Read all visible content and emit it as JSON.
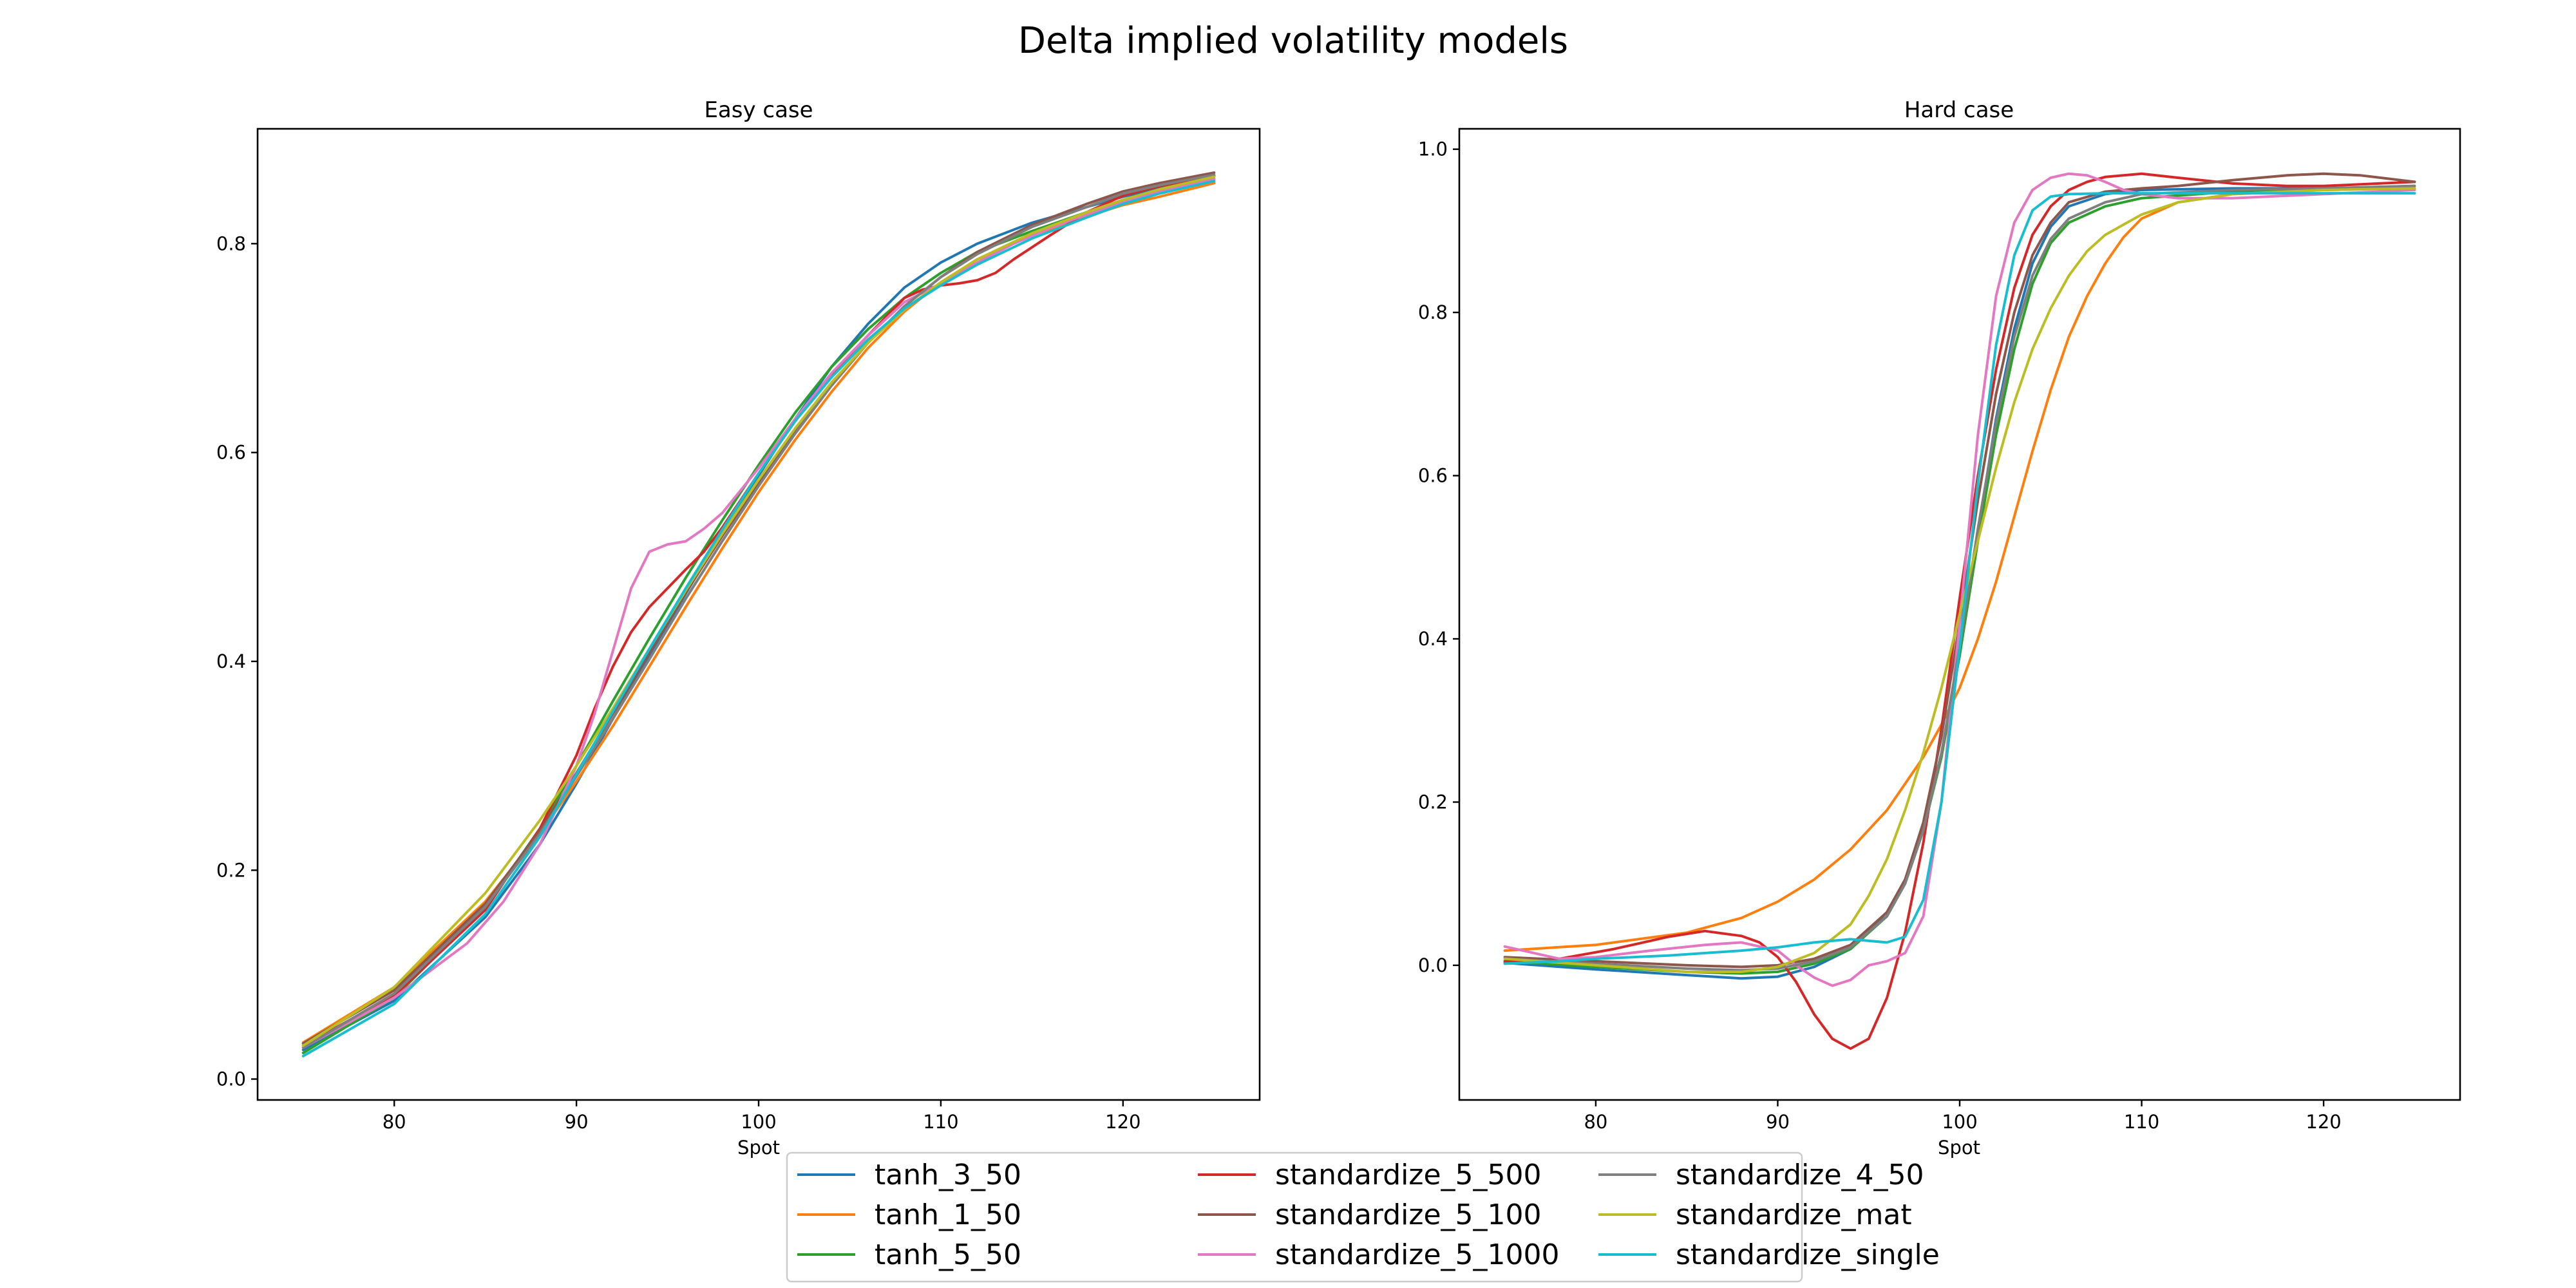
{
  "figure": {
    "title": "Delta implied volatility models"
  },
  "colors": {
    "tanh_3_50": "#1f77b4",
    "tanh_1_50": "#ff7f0e",
    "tanh_5_50": "#2ca02c",
    "standardize_5_500": "#d62728",
    "standardize_5_100": "#8c564b",
    "standardize_5_1000": "#e377c2",
    "standardize_4_50": "#7f7f7f",
    "standardize_mat": "#bcbd22",
    "standardize_single": "#17becf"
  },
  "legend": {
    "placement": "bottom-center",
    "columns": 3,
    "entries": [
      "tanh_3_50",
      "tanh_1_50",
      "tanh_5_50",
      "standardize_5_500",
      "standardize_5_100",
      "standardize_5_1000",
      "standardize_4_50",
      "standardize_mat",
      "standardize_single"
    ]
  },
  "chart_data": [
    {
      "type": "line",
      "title": "Easy case",
      "xlabel": "Spot",
      "ylabel": "",
      "xlim": [
        72.5,
        127.5
      ],
      "ylim": [
        -0.02,
        0.91
      ],
      "xticks": [
        80,
        90,
        100,
        110,
        120
      ],
      "yticks": [
        0.0,
        0.2,
        0.4,
        0.6,
        0.8
      ],
      "ytick_labels": [
        "0.0",
        "0.2",
        "0.4",
        "0.6",
        "0.8"
      ],
      "grid": false,
      "series": [
        {
          "name": "tanh_3_50",
          "x": [
            75,
            80,
            85,
            88,
            90,
            92,
            94,
            96,
            98,
            100,
            102,
            104,
            106,
            108,
            110,
            112,
            115,
            118,
            120,
            122,
            125
          ],
          "y": [
            0.028,
            0.075,
            0.155,
            0.225,
            0.283,
            0.345,
            0.405,
            0.465,
            0.522,
            0.578,
            0.632,
            0.682,
            0.723,
            0.758,
            0.782,
            0.8,
            0.82,
            0.835,
            0.845,
            0.853,
            0.862
          ]
        },
        {
          "name": "tanh_1_50",
          "x": [
            75,
            80,
            85,
            88,
            90,
            92,
            94,
            96,
            98,
            100,
            102,
            104,
            106,
            108,
            110,
            112,
            115,
            118,
            120,
            122,
            125
          ],
          "y": [
            0.035,
            0.088,
            0.17,
            0.235,
            0.285,
            0.338,
            0.395,
            0.452,
            0.508,
            0.562,
            0.612,
            0.658,
            0.7,
            0.735,
            0.763,
            0.785,
            0.808,
            0.826,
            0.837,
            0.845,
            0.858
          ]
        },
        {
          "name": "tanh_5_50",
          "x": [
            75,
            80,
            85,
            88,
            90,
            92,
            94,
            96,
            98,
            100,
            102,
            104,
            106,
            108,
            110,
            112,
            115,
            118,
            120,
            122,
            125
          ],
          "y": [
            0.025,
            0.078,
            0.165,
            0.24,
            0.3,
            0.362,
            0.422,
            0.48,
            0.535,
            0.588,
            0.638,
            0.682,
            0.718,
            0.748,
            0.772,
            0.792,
            0.812,
            0.83,
            0.842,
            0.852,
            0.865
          ]
        },
        {
          "name": "standardize_5_500",
          "x": [
            75,
            80,
            85,
            88,
            90,
            91,
            92,
            93,
            94,
            95,
            96,
            97,
            98,
            100,
            102,
            104,
            106,
            107,
            108,
            109,
            110,
            111,
            112,
            113,
            114,
            116,
            118,
            120,
            122,
            125
          ],
          "y": [
            0.032,
            0.08,
            0.162,
            0.24,
            0.31,
            0.355,
            0.395,
            0.428,
            0.452,
            0.47,
            0.488,
            0.505,
            0.528,
            0.58,
            0.63,
            0.675,
            0.712,
            0.73,
            0.748,
            0.756,
            0.76,
            0.762,
            0.765,
            0.772,
            0.785,
            0.808,
            0.83,
            0.846,
            0.855,
            0.865
          ]
        },
        {
          "name": "standardize_5_100",
          "x": [
            75,
            80,
            85,
            88,
            90,
            92,
            94,
            96,
            98,
            100,
            102,
            104,
            106,
            108,
            110,
            112,
            115,
            118,
            120,
            122,
            125
          ],
          "y": [
            0.034,
            0.085,
            0.168,
            0.238,
            0.293,
            0.35,
            0.408,
            0.466,
            0.52,
            0.571,
            0.62,
            0.665,
            0.705,
            0.74,
            0.768,
            0.792,
            0.818,
            0.838,
            0.85,
            0.858,
            0.868
          ]
        },
        {
          "name": "standardize_5_1000",
          "x": [
            75,
            80,
            84,
            86,
            88,
            90,
            91,
            92,
            93,
            94,
            95,
            96,
            97,
            98,
            100,
            102,
            104,
            106,
            108,
            110,
            112,
            114,
            116,
            118,
            120,
            122,
            125
          ],
          "y": [
            0.03,
            0.078,
            0.13,
            0.17,
            0.225,
            0.3,
            0.35,
            0.41,
            0.47,
            0.505,
            0.512,
            0.515,
            0.527,
            0.542,
            0.585,
            0.632,
            0.676,
            0.712,
            0.744,
            0.762,
            0.782,
            0.8,
            0.815,
            0.828,
            0.84,
            0.85,
            0.862
          ]
        },
        {
          "name": "standardize_4_50",
          "x": [
            75,
            80,
            85,
            88,
            90,
            92,
            94,
            96,
            98,
            100,
            102,
            104,
            106,
            108,
            110,
            112,
            115,
            118,
            120,
            122,
            125
          ],
          "y": [
            0.03,
            0.082,
            0.165,
            0.235,
            0.29,
            0.345,
            0.402,
            0.46,
            0.515,
            0.568,
            0.618,
            0.664,
            0.705,
            0.74,
            0.768,
            0.79,
            0.816,
            0.835,
            0.848,
            0.856,
            0.866
          ]
        },
        {
          "name": "standardize_mat",
          "x": [
            75,
            80,
            85,
            88,
            90,
            92,
            94,
            96,
            98,
            100,
            102,
            104,
            106,
            108,
            110,
            112,
            115,
            118,
            120,
            122,
            125
          ],
          "y": [
            0.032,
            0.088,
            0.178,
            0.248,
            0.3,
            0.355,
            0.412,
            0.468,
            0.522,
            0.574,
            0.623,
            0.667,
            0.705,
            0.737,
            0.763,
            0.785,
            0.81,
            0.83,
            0.842,
            0.852,
            0.864
          ]
        },
        {
          "name": "standardize_single",
          "x": [
            75,
            80,
            85,
            88,
            90,
            92,
            94,
            96,
            98,
            100,
            102,
            104,
            106,
            108,
            110,
            112,
            115,
            118,
            120,
            122,
            125
          ],
          "y": [
            0.022,
            0.072,
            0.158,
            0.232,
            0.292,
            0.352,
            0.412,
            0.47,
            0.526,
            0.58,
            0.63,
            0.672,
            0.708,
            0.738,
            0.76,
            0.78,
            0.805,
            0.825,
            0.838,
            0.848,
            0.86
          ]
        }
      ]
    },
    {
      "type": "line",
      "title": "Hard case",
      "xlabel": "Spot",
      "ylabel": "",
      "xlim": [
        72.5,
        127.5
      ],
      "ylim": [
        -0.165,
        1.025
      ],
      "xticks": [
        80,
        90,
        100,
        110,
        120
      ],
      "yticks": [
        0.0,
        0.2,
        0.4,
        0.6,
        0.8,
        1.0
      ],
      "ytick_labels": [
        "0.0",
        "0.2",
        "0.4",
        "0.6",
        "0.8",
        "1.0"
      ],
      "grid": false,
      "series": [
        {
          "name": "tanh_3_50",
          "x": [
            75,
            80,
            85,
            88,
            90,
            92,
            94,
            96,
            97,
            98,
            99,
            100,
            101,
            102,
            103,
            104,
            105,
            106,
            108,
            110,
            115,
            120,
            125
          ],
          "y": [
            0.003,
            -0.005,
            -0.012,
            -0.016,
            -0.014,
            -0.002,
            0.02,
            0.065,
            0.105,
            0.17,
            0.26,
            0.38,
            0.53,
            0.67,
            0.78,
            0.86,
            0.905,
            0.93,
            0.945,
            0.95,
            0.952,
            0.952,
            0.952
          ]
        },
        {
          "name": "tanh_1_50",
          "x": [
            75,
            80,
            85,
            88,
            90,
            92,
            94,
            96,
            98,
            99,
            100,
            101,
            102,
            103,
            104,
            105,
            106,
            107,
            108,
            109,
            110,
            112,
            115,
            120,
            125
          ],
          "y": [
            0.018,
            0.025,
            0.04,
            0.058,
            0.078,
            0.105,
            0.142,
            0.19,
            0.255,
            0.295,
            0.34,
            0.4,
            0.47,
            0.55,
            0.63,
            0.705,
            0.77,
            0.82,
            0.86,
            0.892,
            0.915,
            0.935,
            0.945,
            0.95,
            0.952
          ]
        },
        {
          "name": "tanh_5_50",
          "x": [
            75,
            80,
            85,
            88,
            90,
            92,
            94,
            96,
            97,
            98,
            99,
            100,
            101,
            102,
            103,
            104,
            105,
            106,
            108,
            110,
            115,
            120,
            125
          ],
          "y": [
            0.005,
            -0.002,
            -0.008,
            -0.01,
            -0.008,
            0.002,
            0.02,
            0.06,
            0.1,
            0.165,
            0.255,
            0.38,
            0.52,
            0.65,
            0.755,
            0.835,
            0.885,
            0.91,
            0.93,
            0.94,
            0.948,
            0.952,
            0.955
          ]
        },
        {
          "name": "standardize_5_500",
          "x": [
            75,
            78,
            81,
            84,
            86,
            88,
            89,
            90,
            91,
            92,
            93,
            94,
            95,
            96,
            97,
            98,
            99,
            100,
            101,
            102,
            103,
            104,
            105,
            106,
            107,
            108,
            110,
            112,
            115,
            118,
            120,
            122,
            125
          ],
          "y": [
            0.005,
            0.008,
            0.02,
            0.035,
            0.042,
            0.036,
            0.028,
            0.01,
            -0.02,
            -0.06,
            -0.09,
            -0.102,
            -0.09,
            -0.04,
            0.04,
            0.15,
            0.29,
            0.45,
            0.6,
            0.73,
            0.83,
            0.895,
            0.93,
            0.95,
            0.96,
            0.966,
            0.97,
            0.965,
            0.958,
            0.955,
            0.955,
            0.957,
            0.96
          ]
        },
        {
          "name": "standardize_5_100",
          "x": [
            75,
            80,
            85,
            88,
            90,
            92,
            94,
            96,
            97,
            98,
            99,
            100,
            101,
            102,
            103,
            104,
            105,
            106,
            108,
            110,
            112,
            115,
            118,
            120,
            122,
            125
          ],
          "y": [
            0.01,
            0.005,
            0.0,
            -0.002,
            0.0,
            0.008,
            0.025,
            0.065,
            0.105,
            0.175,
            0.28,
            0.42,
            0.57,
            0.7,
            0.8,
            0.87,
            0.91,
            0.935,
            0.948,
            0.952,
            0.955,
            0.962,
            0.968,
            0.97,
            0.968,
            0.96
          ]
        },
        {
          "name": "standardize_5_1000",
          "x": [
            75,
            76,
            77,
            78,
            80,
            83,
            86,
            88,
            90,
            91,
            92,
            93,
            94,
            95,
            96,
            97,
            98,
            99,
            100,
            101,
            102,
            103,
            104,
            105,
            106,
            107,
            108,
            109,
            110,
            112,
            115,
            120,
            125
          ],
          "y": [
            0.023,
            0.018,
            0.013,
            0.008,
            0.01,
            0.018,
            0.025,
            0.028,
            0.018,
            0.0,
            -0.015,
            -0.025,
            -0.018,
            0.0,
            0.005,
            0.015,
            0.06,
            0.2,
            0.42,
            0.65,
            0.82,
            0.91,
            0.95,
            0.965,
            0.97,
            0.968,
            0.96,
            0.95,
            0.945,
            0.94,
            0.94,
            0.945,
            0.95
          ]
        },
        {
          "name": "standardize_4_50",
          "x": [
            75,
            80,
            85,
            88,
            90,
            92,
            94,
            96,
            97,
            98,
            99,
            100,
            101,
            102,
            103,
            104,
            105,
            106,
            108,
            110,
            115,
            120,
            125
          ],
          "y": [
            0.008,
            0.002,
            -0.004,
            -0.006,
            -0.004,
            0.005,
            0.022,
            0.06,
            0.1,
            0.165,
            0.26,
            0.39,
            0.535,
            0.665,
            0.77,
            0.845,
            0.89,
            0.915,
            0.935,
            0.945,
            0.95,
            0.952,
            0.955
          ]
        },
        {
          "name": "standardize_mat",
          "x": [
            75,
            80,
            85,
            88,
            90,
            92,
            94,
            95,
            96,
            97,
            98,
            99,
            100,
            101,
            102,
            103,
            104,
            105,
            106,
            107,
            108,
            110,
            112,
            115,
            120,
            125
          ],
          "y": [
            0.008,
            0.0,
            -0.008,
            -0.008,
            -0.002,
            0.015,
            0.05,
            0.085,
            0.13,
            0.19,
            0.26,
            0.34,
            0.43,
            0.52,
            0.61,
            0.69,
            0.755,
            0.805,
            0.845,
            0.875,
            0.895,
            0.92,
            0.935,
            0.945,
            0.95,
            0.952
          ]
        },
        {
          "name": "standardize_single",
          "x": [
            75,
            78,
            80,
            84,
            88,
            90,
            92,
            93,
            94,
            95,
            96,
            97,
            98,
            99,
            100,
            101,
            102,
            103,
            104,
            105,
            106,
            108,
            110,
            115,
            120,
            125
          ],
          "y": [
            0.002,
            0.005,
            0.008,
            0.012,
            0.018,
            0.022,
            0.028,
            0.03,
            0.032,
            0.03,
            0.028,
            0.035,
            0.08,
            0.2,
            0.39,
            0.59,
            0.76,
            0.87,
            0.925,
            0.942,
            0.945,
            0.946,
            0.946,
            0.946,
            0.946,
            0.946
          ]
        }
      ]
    }
  ]
}
